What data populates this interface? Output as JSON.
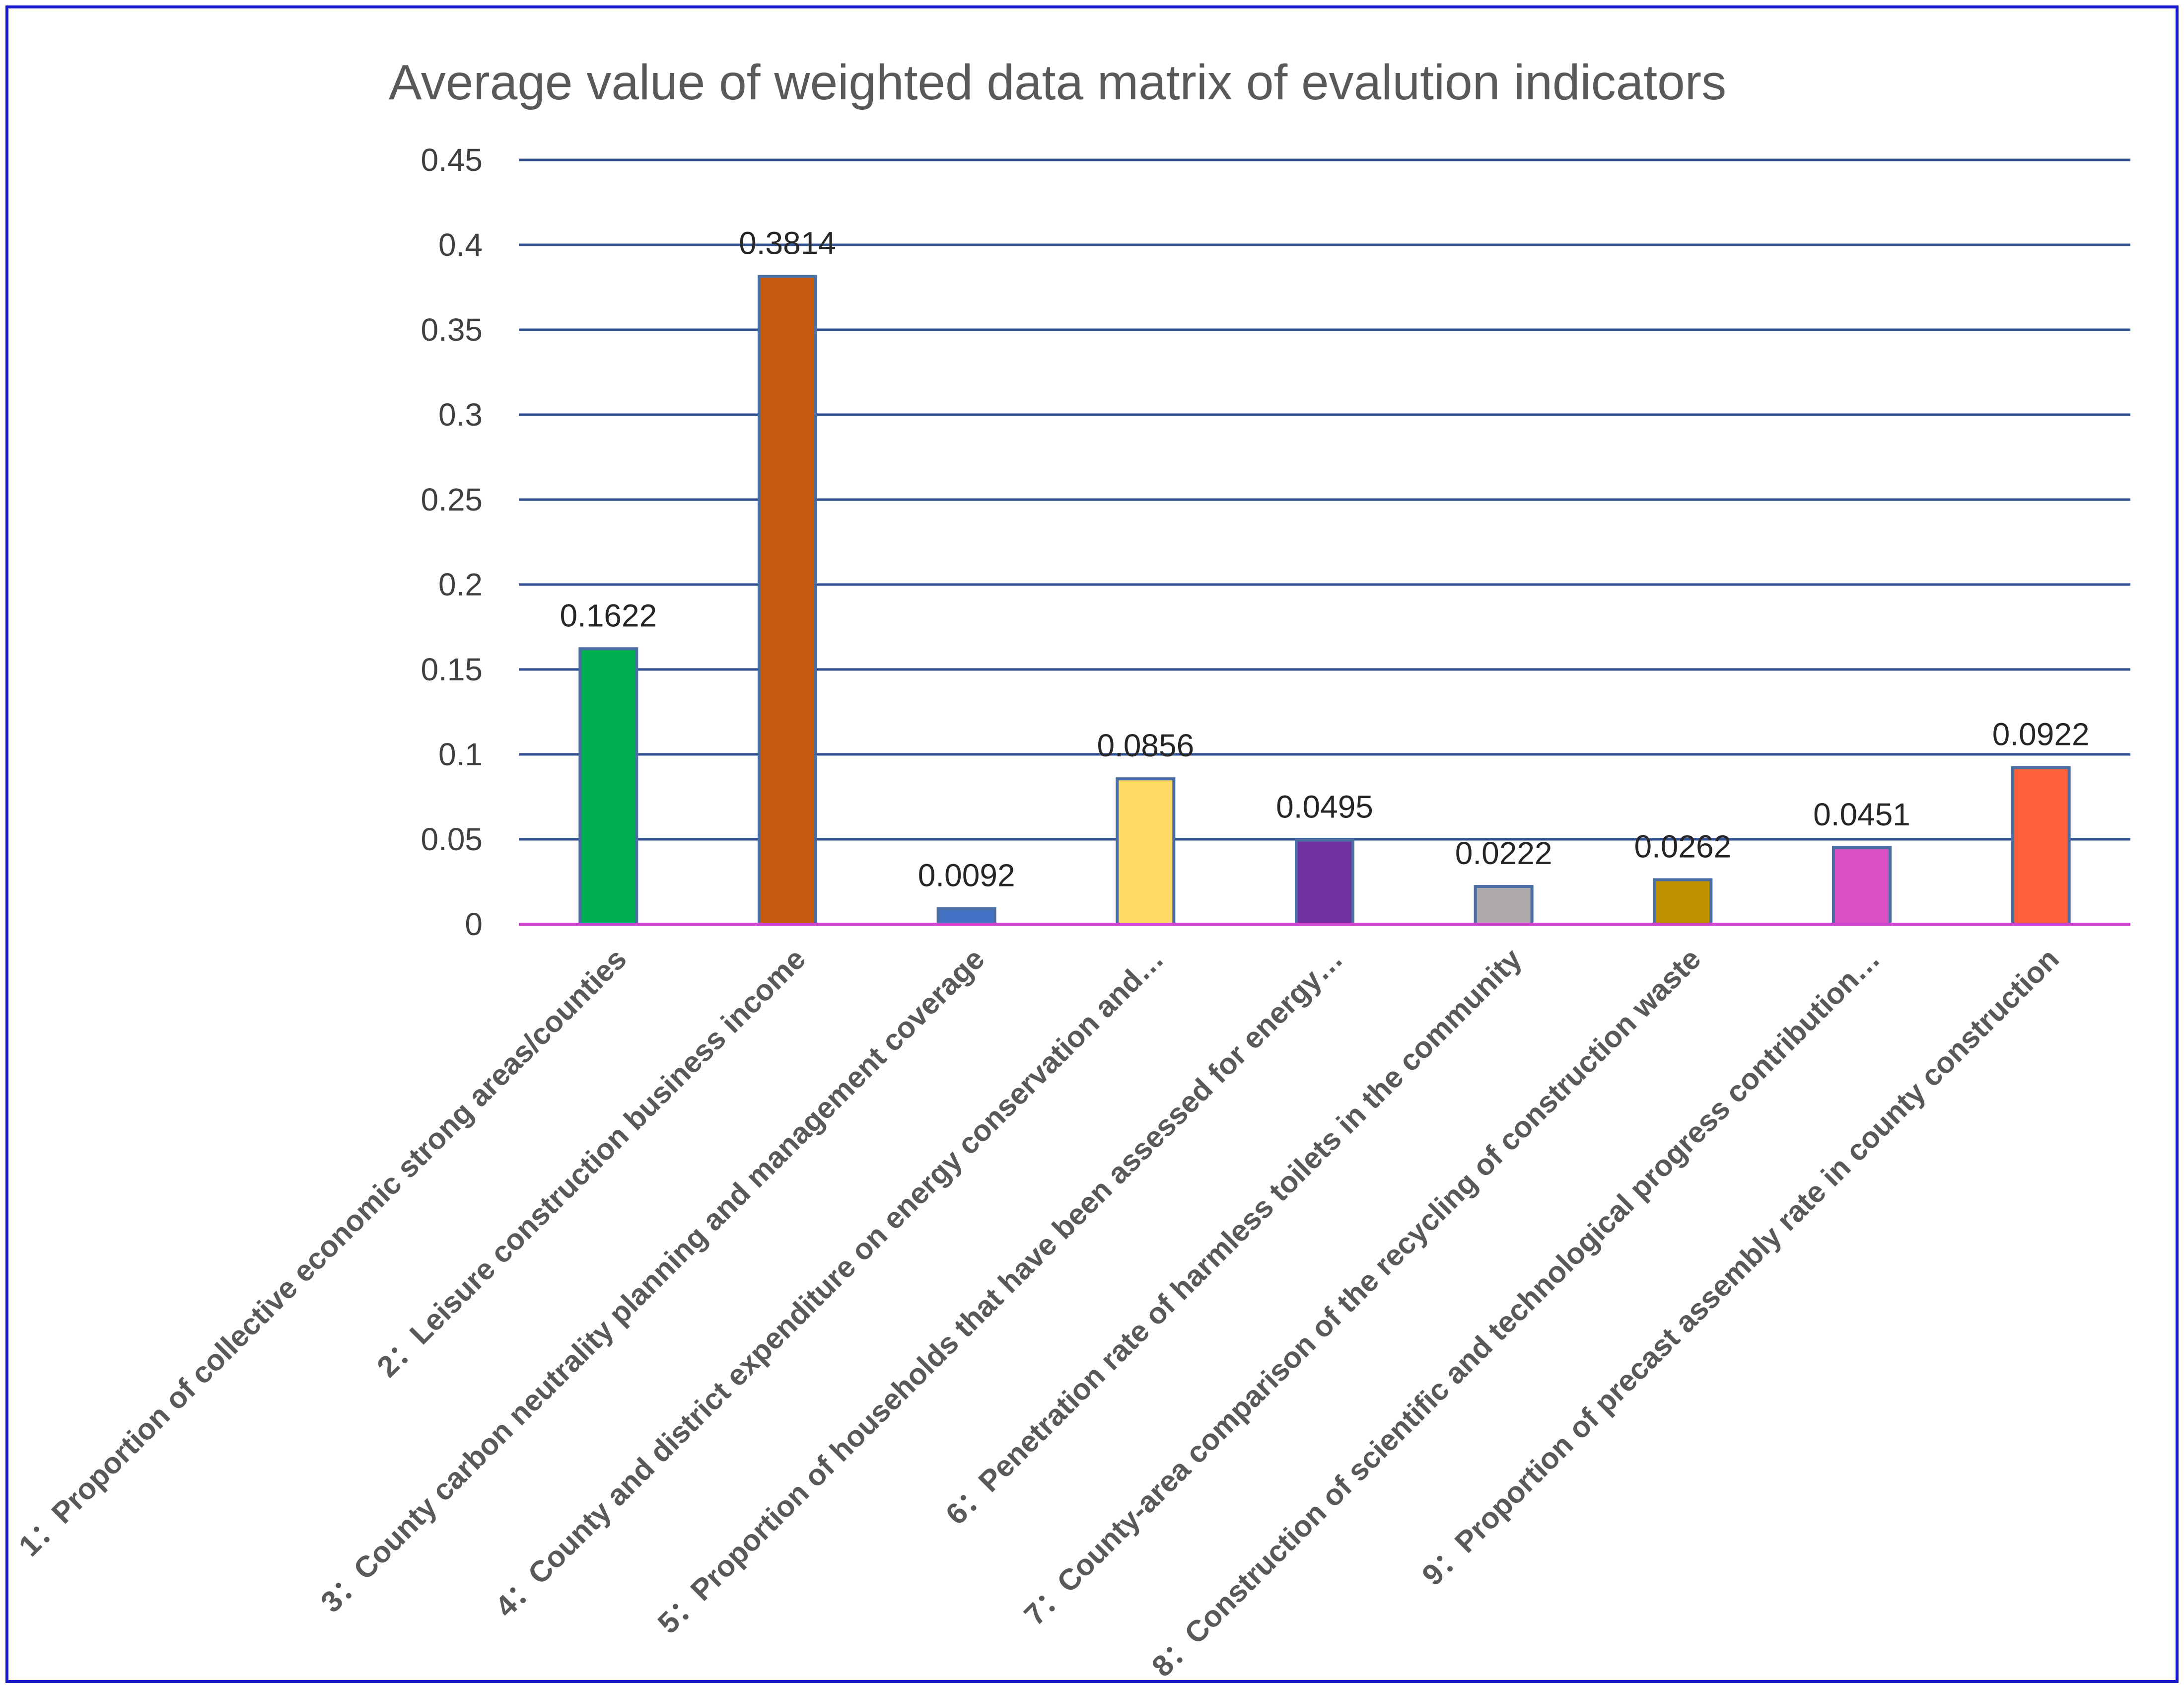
{
  "chart_data": {
    "type": "bar",
    "title": "Average value of weighted data matrix of evalution indicators",
    "xlabel": "",
    "ylabel": "",
    "ylim": [
      0,
      0.45
    ],
    "yticks": [
      0,
      0.05,
      0.1,
      0.15,
      0.2,
      0.25,
      0.3,
      0.35,
      0.4,
      0.45
    ],
    "ytick_labels": [
      "0",
      "0.05",
      "0.1",
      "0.15",
      "0.2",
      "0.25",
      "0.3",
      "0.35",
      "0.4",
      "0.45"
    ],
    "grid": true,
    "categories": [
      "1：Proportion of collective economic strong areas/counties",
      "2：Leisure construction business income",
      "3：County carbon neutrality planning and management coverage",
      "4：County and district expenditure on energy conservation and…",
      "5：Proportion of households that have been assessed for energy…",
      "6：Penetration rate of harmless toilets in the community",
      "7：County-area comparison of the recycling of construction waste",
      "8：Construction of scientific and technological progress contribution…",
      "9：Proportion of precast assembly rate in county construction"
    ],
    "values": [
      0.1622,
      0.3814,
      0.0092,
      0.0856,
      0.0495,
      0.0222,
      0.0262,
      0.0451,
      0.0922
    ],
    "value_labels": [
      "0.1622",
      "0.3814",
      "0.0092",
      "0.0856",
      "0.0495",
      "0.0222",
      "0.0262",
      "0.0451",
      "0.0922"
    ],
    "colors": [
      "#00B050",
      "#C55A11",
      "#4472C4",
      "#FFD966",
      "#7030A0",
      "#AEAAAA",
      "#BF9000",
      "#DD50C6",
      "#FF5F3A"
    ],
    "bar_outline_color": "#4A6FA5",
    "grid_color": "#2F4F8F",
    "baseline_color": "#CC44CC",
    "frame_color": "#1A1ACC"
  }
}
